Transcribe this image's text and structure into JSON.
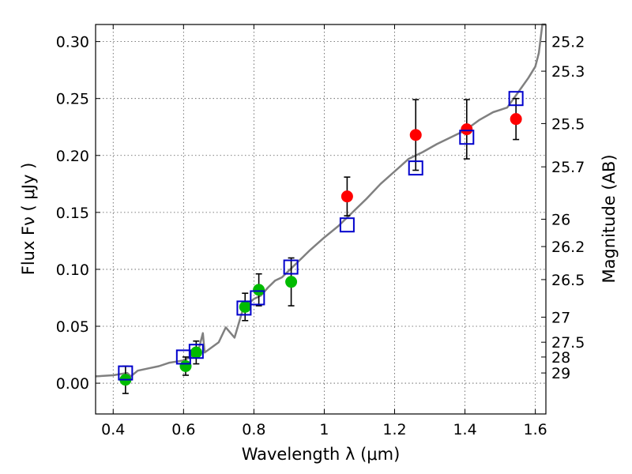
{
  "chart_data": {
    "type": "scatter",
    "xlabel": "Wavelength  λ (μm)",
    "ylabel": "Flux  Fν  ( μJy )",
    "y2label": "Magnitude (AB)",
    "xlim": [
      0.35,
      1.63
    ],
    "ylim": [
      -0.027,
      0.315
    ],
    "grid": true,
    "x_ticks": [
      0.4,
      0.6,
      0.8,
      1.0,
      1.2,
      1.4,
      1.6
    ],
    "x_tick_labels": [
      "0.4",
      "0.6",
      "0.8",
      "1",
      "1.2",
      "1.4",
      "1.6"
    ],
    "y_ticks": [
      0.0,
      0.05,
      0.1,
      0.15,
      0.2,
      0.25,
      0.3
    ],
    "y_tick_labels": [
      "0.00",
      "0.05",
      "0.10",
      "0.15",
      "0.20",
      "0.25",
      "0.30"
    ],
    "y2_ticks": [
      {
        "label": "25.2",
        "flux": 0.3
      },
      {
        "label": "25.3",
        "flux": 0.274
      },
      {
        "label": "25.5",
        "flux": 0.228
      },
      {
        "label": "25.7",
        "flux": 0.19
      },
      {
        "label": "26",
        "flux": 0.144
      },
      {
        "label": "26.2",
        "flux": 0.12
      },
      {
        "label": "26.5",
        "flux": 0.091
      },
      {
        "label": "27",
        "flux": 0.058
      },
      {
        "label": "27.5",
        "flux": 0.036
      },
      {
        "label": "28",
        "flux": 0.023
      },
      {
        "label": "29",
        "flux": 0.009
      }
    ],
    "model_spectrum": {
      "color": "#808080",
      "x": [
        0.35,
        0.4,
        0.42,
        0.44,
        0.45,
        0.47,
        0.5,
        0.53,
        0.56,
        0.58,
        0.6,
        0.62,
        0.64,
        0.655,
        0.66,
        0.7,
        0.72,
        0.745,
        0.77,
        0.8,
        0.82,
        0.84,
        0.86,
        0.88,
        0.9,
        0.93,
        0.96,
        1.0,
        1.04,
        1.08,
        1.12,
        1.16,
        1.2,
        1.24,
        1.28,
        1.32,
        1.36,
        1.4,
        1.44,
        1.48,
        1.52,
        1.55,
        1.58,
        1.6,
        1.61,
        1.62,
        1.63
      ],
      "y": [
        0.006,
        0.007,
        0.008,
        0.009,
        0.006,
        0.011,
        0.013,
        0.015,
        0.018,
        0.019,
        0.02,
        0.023,
        0.026,
        0.044,
        0.027,
        0.036,
        0.049,
        0.04,
        0.066,
        0.074,
        0.077,
        0.084,
        0.09,
        0.093,
        0.099,
        0.108,
        0.117,
        0.128,
        0.138,
        0.15,
        0.162,
        0.175,
        0.186,
        0.197,
        0.203,
        0.21,
        0.216,
        0.222,
        0.231,
        0.238,
        0.242,
        0.255,
        0.268,
        0.278,
        0.29,
        0.315,
        0.315
      ]
    },
    "series": [
      {
        "color": "#ff0000",
        "marker": "circle",
        "points": [
          {
            "x": 1.065,
            "y": 0.164,
            "err": 0.017
          },
          {
            "x": 1.26,
            "y": 0.218,
            "err": 0.031
          },
          {
            "x": 1.405,
            "y": 0.223,
            "err": 0.026
          },
          {
            "x": 1.545,
            "y": 0.232,
            "err": 0.018
          }
        ]
      },
      {
        "color": "#00bb00",
        "marker": "circle",
        "points": [
          {
            "x": 0.435,
            "y": 0.003,
            "err": 0.012
          },
          {
            "x": 0.606,
            "y": 0.015,
            "err": 0.008
          },
          {
            "x": 0.636,
            "y": 0.027,
            "err": 0.01
          },
          {
            "x": 0.775,
            "y": 0.067,
            "err": 0.012
          },
          {
            "x": 0.814,
            "y": 0.082,
            "err": 0.014
          },
          {
            "x": 0.906,
            "y": 0.089,
            "err": 0.021
          }
        ]
      },
      {
        "color": "#0000cc",
        "marker": "square",
        "points": [
          {
            "x": 0.435,
            "y": 0.009
          },
          {
            "x": 0.6,
            "y": 0.023
          },
          {
            "x": 0.636,
            "y": 0.028
          },
          {
            "x": 0.772,
            "y": 0.066
          },
          {
            "x": 0.81,
            "y": 0.075
          },
          {
            "x": 0.905,
            "y": 0.102
          },
          {
            "x": 1.065,
            "y": 0.139
          },
          {
            "x": 1.26,
            "y": 0.189
          },
          {
            "x": 1.405,
            "y": 0.216
          },
          {
            "x": 1.545,
            "y": 0.25
          }
        ]
      }
    ]
  }
}
